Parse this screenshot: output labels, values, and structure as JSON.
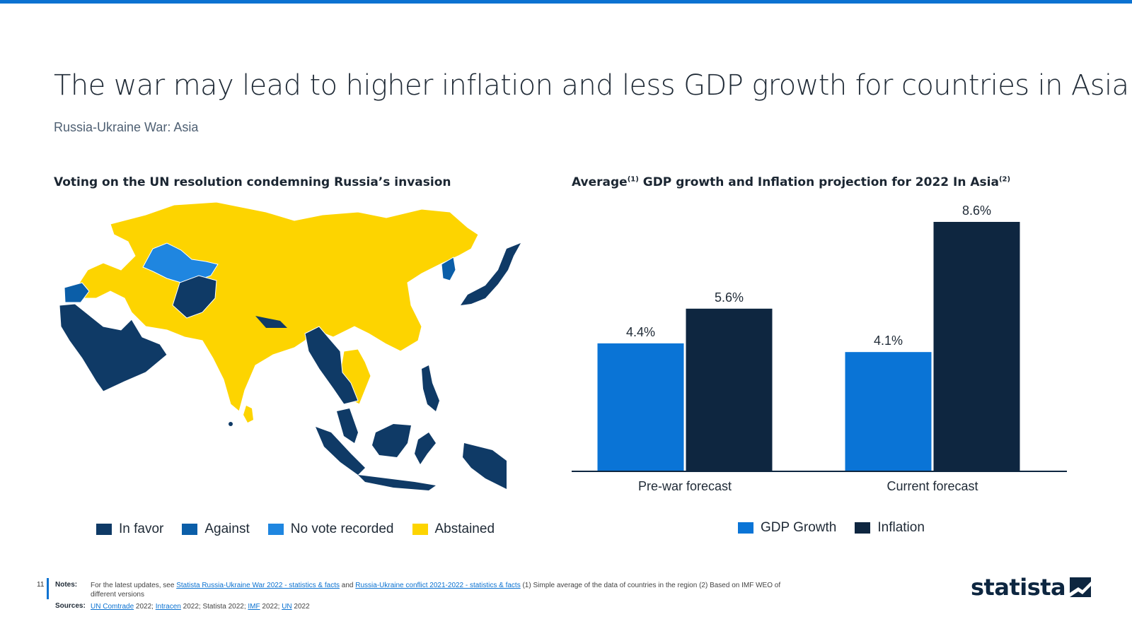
{
  "page": {
    "title": "The war may lead to higher inflation and less GDP growth for countries in Asia",
    "subtitle": "Russia-Ukraine War: Asia",
    "page_number": "11"
  },
  "map_panel": {
    "title": "Voting on the UN resolution condemning Russia’s invasion",
    "legend": [
      {
        "label": "In favor",
        "color": "#0f3a66"
      },
      {
        "label": "Against",
        "color": "#0b5ea8"
      },
      {
        "label": "No vote recorded",
        "color": "#1f86e0"
      },
      {
        "label": "Abstained",
        "color": "#fdd400"
      }
    ]
  },
  "chart_panel": {
    "title_main": "Average",
    "title_sup1": "(1)",
    "title_rest": " GDP growth and Inflation projection for 2022 In Asia",
    "title_sup2": "(2)"
  },
  "chart_data": {
    "type": "bar",
    "categories": [
      "Pre-war forecast",
      "Current forecast"
    ],
    "series": [
      {
        "name": "GDP Growth",
        "values": [
          4.4,
          4.1
        ],
        "color": "#0a74d6",
        "labels": [
          "4.4%",
          "4.1%"
        ]
      },
      {
        "name": "Inflation",
        "values": [
          5.6,
          8.6
        ],
        "color": "#0e2640",
        "labels": [
          "5.6%",
          "8.6%"
        ]
      }
    ],
    "ylim": [
      0,
      8.6
    ],
    "grid": false,
    "legend_position": "bottom"
  },
  "footer": {
    "notes_label": "Notes:",
    "notes_prefix": "For the latest updates, see ",
    "notes_link1": "Statista Russia-Ukraine War 2022 - statistics & facts",
    "notes_and": " and ",
    "notes_link2": "Russia-Ukraine conflict 2021-2022 - statistics & facts",
    "notes_suffix": " (1) Simple average of the data of countries in the region (2) Based on IMF WEO of different versions",
    "sources_label": "Sources:",
    "src1": "UN Comtrade",
    "src1_year": " 2022; ",
    "src2": "Intracen",
    "src2_rest": " 2022; Statista 2022; ",
    "src3": "IMF",
    "src3_year": " 2022; ",
    "src4": "UN",
    "src4_year": " 2022",
    "logo_text": "statista"
  }
}
